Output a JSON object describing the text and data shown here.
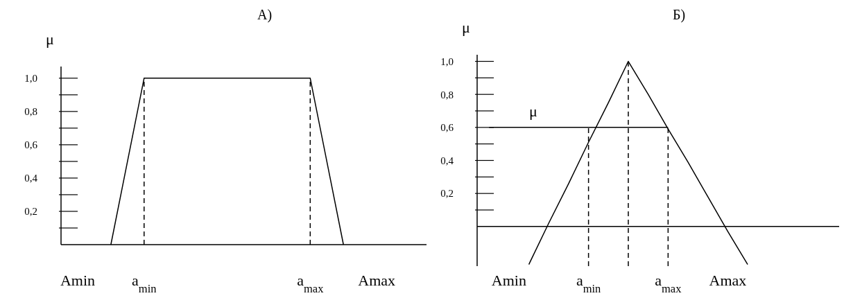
{
  "chart_data": [
    {
      "type": "line",
      "title": "А)",
      "ylabel": "μ",
      "ylim": [
        0,
        1.07
      ],
      "categories": [
        "Amin",
        null,
        "a$_{min}$",
        null,
        null,
        null,
        null,
        "a$_{max}$",
        null,
        "Amax",
        null
      ],
      "yticks": [
        {
          "value": 0.2,
          "label": "0,2"
        },
        {
          "value": 0.4,
          "label": "0,4"
        },
        {
          "value": 0.6,
          "label": "0,6"
        },
        {
          "value": 0.8,
          "label": "0,8"
        },
        {
          "value": 1,
          "label": "1,0"
        }
      ],
      "ref_lines": [
        {
          "axis": "x",
          "value": "a$_{min}$",
          "color": "#000000",
          "line_style": "dashed"
        },
        {
          "axis": "x",
          "value": "a$_{max}$",
          "color": "#000000",
          "line_style": "dashed"
        }
      ],
      "series": [
        {
          "color": "#000000",
          "line_style": "solid",
          "values": [
            null,
            0,
            1,
            1,
            1,
            1,
            1,
            1,
            0,
            null,
            null
          ]
        }
      ]
    },
    {
      "type": "line",
      "title": "Б)",
      "ylabel": "μ",
      "ylim": [
        -0.24,
        1.04
      ],
      "categories": [
        null,
        "Amin",
        null,
        null,
        null,
        "a$_{min}$",
        null,
        null,
        null,
        "a$_{max}$",
        null,
        null,
        "Amax",
        null,
        null,
        null,
        null,
        null
      ],
      "yticks": [
        {
          "value": 0.2,
          "label": "0,2"
        },
        {
          "value": 0.4,
          "label": "0,4"
        },
        {
          "value": 0.6,
          "label": "0,6"
        },
        {
          "value": 0.8,
          "label": "0,8"
        },
        {
          "value": 1,
          "label": "1,0"
        }
      ],
      "annotations": [
        "μ"
      ],
      "ref_lines": [
        {
          "axis": "x",
          "value": "a$_{min}$",
          "color": "#000000",
          "line_style": "dashed"
        },
        {
          "axis": "x",
          "value": "a$_{max}$",
          "color": "#000000",
          "line_style": "dashed"
        }
      ],
      "series": [
        {
          "color": "#000000",
          "line_style": "solid",
          "values": [
            null,
            null,
            -0.23,
            0.02,
            0.26,
            0.51,
            0.75,
            1,
            0.8,
            0.59,
            0.39,
            0.18,
            -0.03,
            -0.23,
            null,
            null,
            null,
            null
          ]
        },
        {
          "color": "#000000",
          "line_style": "solid",
          "values": [
            0.6,
            0.6,
            0.6,
            0.6,
            0.6,
            0.6,
            0.6,
            0.6,
            0.6,
            0.6,
            null,
            null,
            null,
            null,
            null,
            null,
            null,
            null
          ]
        }
      ]
    }
  ]
}
